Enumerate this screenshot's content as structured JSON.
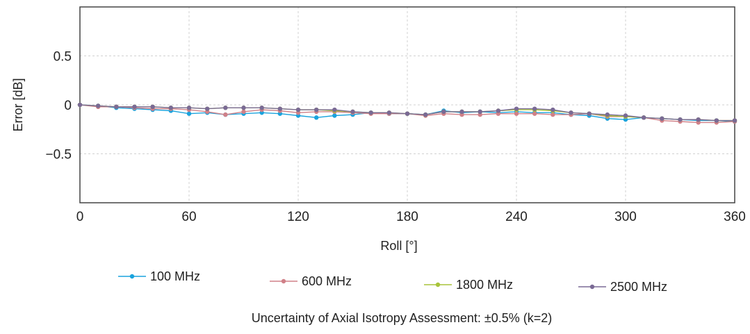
{
  "chart_data": {
    "type": "line",
    "title": "",
    "xlabel": "Roll [°]",
    "ylabel": "Error [dB]",
    "xlim": [
      0,
      360
    ],
    "ylim": [
      -1,
      1
    ],
    "xticks": [
      0,
      60,
      120,
      180,
      240,
      300,
      360
    ],
    "xtick_labels": [
      "0",
      "60",
      "120",
      "180",
      "240",
      "300",
      "360"
    ],
    "yticks": [
      0.5,
      0,
      -0.5
    ],
    "ytick_labels": [
      "0.5",
      "0",
      "−0.5"
    ],
    "grid": true,
    "legend_position": "bottom",
    "x": [
      0,
      10,
      20,
      30,
      40,
      50,
      60,
      70,
      80,
      90,
      100,
      110,
      120,
      130,
      140,
      150,
      160,
      170,
      180,
      190,
      200,
      210,
      220,
      230,
      240,
      250,
      260,
      270,
      280,
      290,
      300,
      310,
      320,
      330,
      340,
      350,
      360
    ],
    "series": [
      {
        "name": "100 MHz",
        "color": "#1aa3dd",
        "values": [
          0.0,
          -0.01,
          -0.03,
          -0.04,
          -0.05,
          -0.06,
          -0.09,
          -0.08,
          -0.1,
          -0.09,
          -0.08,
          -0.09,
          -0.11,
          -0.13,
          -0.11,
          -0.1,
          -0.08,
          -0.09,
          -0.09,
          -0.1,
          -0.06,
          -0.08,
          -0.07,
          -0.08,
          -0.07,
          -0.08,
          -0.08,
          -0.1,
          -0.11,
          -0.14,
          -0.15,
          -0.13,
          -0.14,
          -0.15,
          -0.16,
          -0.16,
          -0.17
        ]
      },
      {
        "name": "600 MHz",
        "color": "#d08088",
        "values": [
          0.0,
          -0.02,
          -0.02,
          -0.03,
          -0.04,
          -0.04,
          -0.05,
          -0.07,
          -0.1,
          -0.07,
          -0.05,
          -0.06,
          -0.08,
          -0.07,
          -0.07,
          -0.08,
          -0.09,
          -0.09,
          -0.09,
          -0.11,
          -0.09,
          -0.1,
          -0.1,
          -0.09,
          -0.09,
          -0.09,
          -0.1,
          -0.1,
          -0.09,
          -0.12,
          -0.12,
          -0.13,
          -0.16,
          -0.17,
          -0.18,
          -0.18,
          -0.17
        ]
      },
      {
        "name": "1800 MHz",
        "color": "#a8c43a",
        "values": [
          0.0,
          -0.01,
          -0.02,
          -0.02,
          -0.02,
          -0.03,
          -0.03,
          -0.04,
          -0.03,
          -0.03,
          -0.03,
          -0.04,
          -0.05,
          -0.05,
          -0.06,
          -0.07,
          -0.08,
          -0.08,
          -0.09,
          -0.1,
          -0.07,
          -0.07,
          -0.07,
          -0.06,
          -0.05,
          -0.05,
          -0.06,
          -0.08,
          -0.09,
          -0.11,
          -0.12,
          -0.13,
          -0.14,
          -0.15,
          -0.15,
          -0.16,
          -0.16
        ]
      },
      {
        "name": "2500 MHz",
        "color": "#7a6a95",
        "values": [
          0.0,
          -0.01,
          -0.02,
          -0.02,
          -0.02,
          -0.03,
          -0.03,
          -0.04,
          -0.03,
          -0.03,
          -0.03,
          -0.04,
          -0.05,
          -0.05,
          -0.05,
          -0.07,
          -0.08,
          -0.08,
          -0.09,
          -0.1,
          -0.07,
          -0.07,
          -0.07,
          -0.06,
          -0.04,
          -0.04,
          -0.05,
          -0.08,
          -0.09,
          -0.1,
          -0.11,
          -0.13,
          -0.14,
          -0.15,
          -0.15,
          -0.16,
          -0.16
        ]
      }
    ],
    "footnote": "Uncertainty of Axial Isotropy Assessment: ±0.5% (k=2)"
  }
}
